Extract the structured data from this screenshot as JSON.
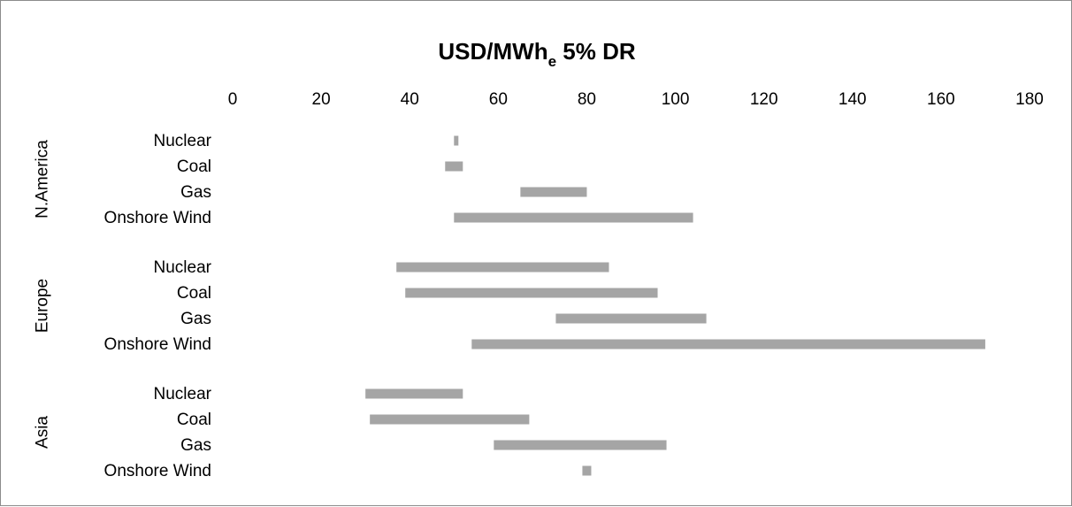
{
  "chart_data": {
    "type": "bar",
    "orientation": "horizontal-floating-range",
    "title": {
      "main": "USD/MWh",
      "subscript": "e",
      "suffix": " 5% DR"
    },
    "xlim": [
      0,
      180
    ],
    "x_ticks": [
      "0",
      "20",
      "40",
      "60",
      "80",
      "100",
      "120",
      "140",
      "160",
      "180"
    ],
    "x_tick_values": [
      0,
      20,
      40,
      60,
      80,
      100,
      120,
      140,
      160,
      180
    ],
    "x_axis_position": "top",
    "grid": false,
    "bar_color": "#a5a5a5",
    "groups": [
      {
        "region": "N.America",
        "items": [
          {
            "label": "Nuclear",
            "min": 50,
            "max": 51
          },
          {
            "label": "Coal",
            "min": 48,
            "max": 52
          },
          {
            "label": "Gas",
            "min": 65,
            "max": 80
          },
          {
            "label": "Onshore Wind",
            "min": 50,
            "max": 104
          }
        ]
      },
      {
        "region": "Europe",
        "items": [
          {
            "label": "Nuclear",
            "min": 37,
            "max": 85
          },
          {
            "label": "Coal",
            "min": 39,
            "max": 96
          },
          {
            "label": "Gas",
            "min": 73,
            "max": 107
          },
          {
            "label": "Onshore Wind",
            "min": 54,
            "max": 170
          }
        ]
      },
      {
        "region": "Asia",
        "items": [
          {
            "label": "Nuclear",
            "min": 30,
            "max": 52
          },
          {
            "label": "Coal",
            "min": 31,
            "max": 67
          },
          {
            "label": "Gas",
            "min": 59,
            "max": 98
          },
          {
            "label": "Onshore Wind",
            "min": 79,
            "max": 81
          }
        ]
      }
    ]
  }
}
